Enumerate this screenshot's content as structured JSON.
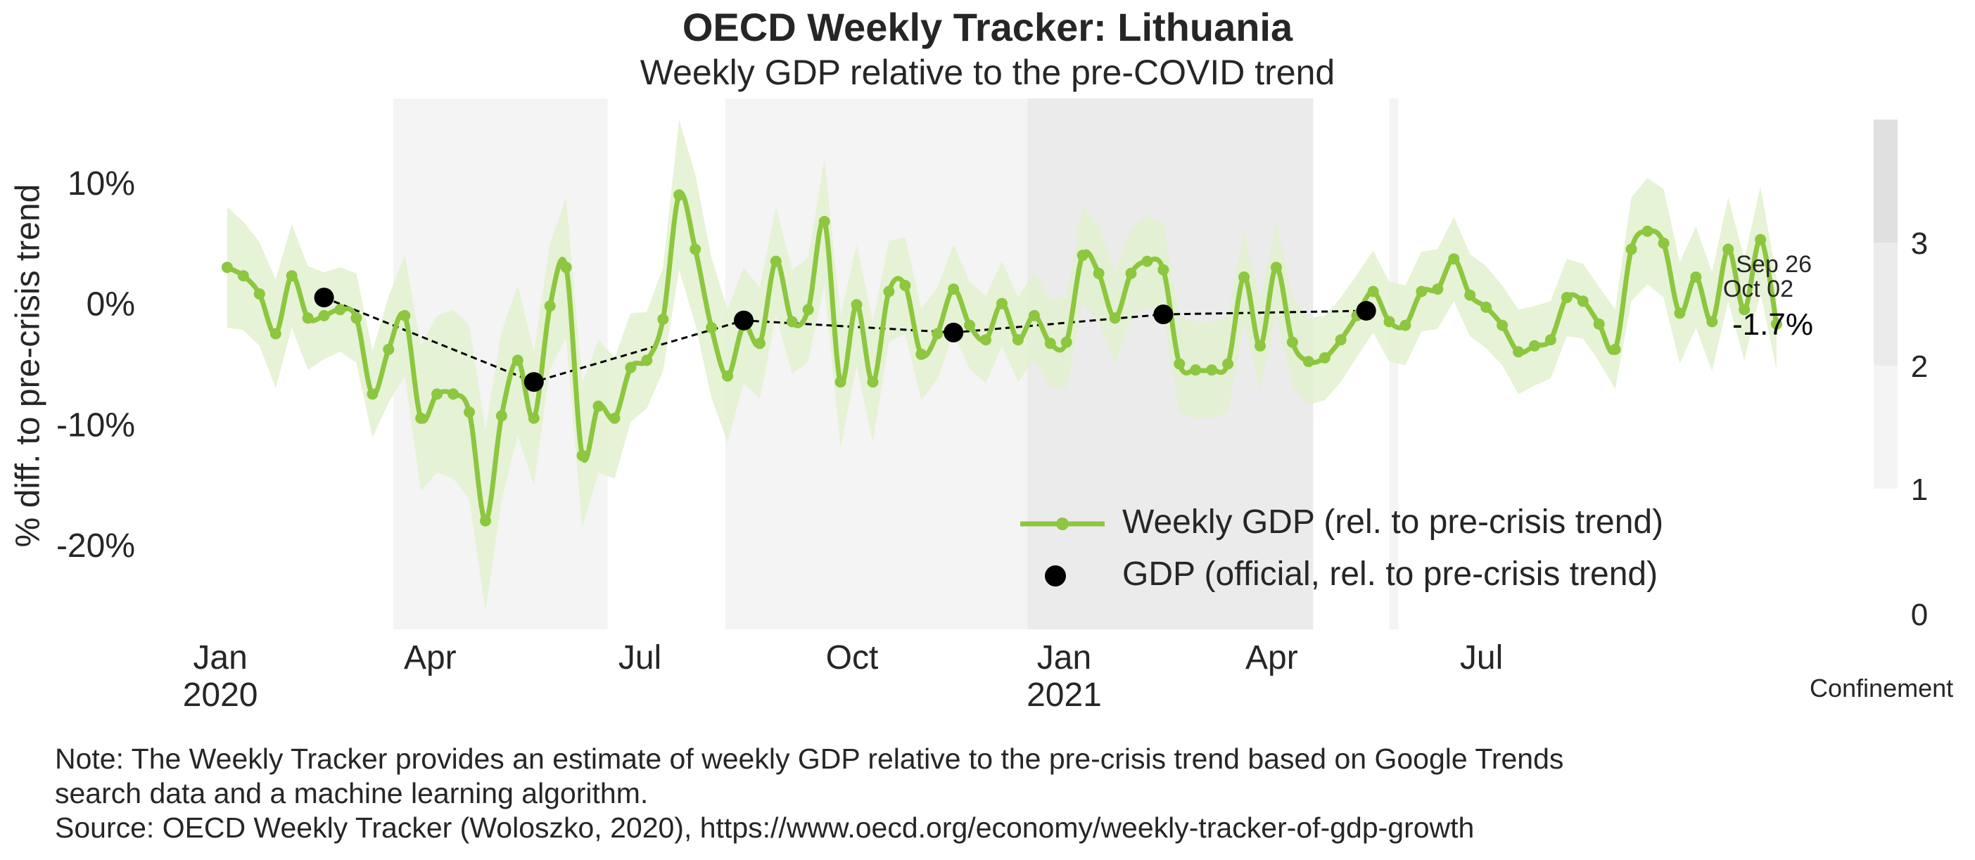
{
  "title": "OECD Weekly Tracker: Lithuania",
  "subtitle": "Weekly GDP relative to the pre-COVID trend",
  "note_lines": [
    "Note: The Weekly Tracker provides an estimate of weekly GDP relative to the pre-crisis trend based on Google Trends",
    "search data and a machine learning algorithm.",
    "Source: OECD Weekly Tracker (Woloszko, 2020), https://www.oecd.org/economy/weekly-tracker-of-gdp-growth"
  ],
  "colors": {
    "weekly": "#8dc63f",
    "weekly_band": "#e2f1cf",
    "official": "#000000",
    "text": "#262626",
    "confinement_levels": [
      "#ffffff",
      "#f4f4f4",
      "#ebebeb",
      "#e0e0e0"
    ]
  },
  "chart_data": {
    "type": "line",
    "ylabel": "% diff. to pre-crisis trend",
    "ylim": [
      -27,
      17
    ],
    "yticks": [
      10,
      0,
      -10,
      -20
    ],
    "ytick_labels": [
      "10%",
      "0%",
      "-10%",
      "-20%"
    ],
    "xlim": [
      "2019-12-28",
      "2021-10-08"
    ],
    "xticks": [
      {
        "date": "2020-01-01",
        "label": "Jan",
        "year": "2020"
      },
      {
        "date": "2020-04-01",
        "label": "Apr",
        "year": ""
      },
      {
        "date": "2020-07-01",
        "label": "Jul",
        "year": ""
      },
      {
        "date": "2020-10-01",
        "label": "Oct",
        "year": ""
      },
      {
        "date": "2021-01-01",
        "label": "Jan",
        "year": "2021"
      },
      {
        "date": "2021-04-01",
        "label": "Apr",
        "year": ""
      },
      {
        "date": "2021-07-01",
        "label": "Jul",
        "year": ""
      }
    ],
    "legend": [
      "Weekly GDP (rel. to pre-crisis trend)",
      "GDP (official, rel. to pre-crisis trend)"
    ],
    "legend_position": "lower right",
    "grid": false,
    "weekly_start": "2020-01-04",
    "weekly_values": [
      3,
      2.3,
      0.8,
      -2.5,
      2.3,
      -1.2,
      -1,
      -0.5,
      -1.2,
      -7.5,
      -3.8,
      -1,
      -9.5,
      -7.5,
      -7.5,
      -9,
      -18,
      -9.3,
      -4.7,
      -9.5,
      -0.2,
      3,
      -12.6,
      -8.5,
      -9.5,
      -5.3,
      -4.7,
      -1.3,
      9,
      4.5,
      -2,
      -6,
      -1.8,
      -3.3,
      3.5,
      -1.5,
      -0.5,
      6.8,
      -6.5,
      -0.1,
      -6.5,
      1,
      1.5,
      -4.2,
      -2.5,
      1.2,
      -1.8,
      -3,
      0,
      -3,
      -1,
      -3.3,
      -3.2,
      4,
      2.5,
      -1.2,
      2.5,
      3.5,
      2.8,
      -5,
      -5.5,
      -5.5,
      -5,
      2.2,
      -3.5,
      3,
      -3.2,
      -4.8,
      -4.5,
      -3,
      -1,
      1,
      -1.5,
      -1.8,
      1,
      1.2,
      3.7,
      0.7,
      -0.3,
      -1.8,
      -4,
      -3.5,
      -3,
      0.5,
      0.2,
      -1.7,
      -3.8,
      4.5,
      6,
      5,
      -0.8,
      2.2,
      -1.5,
      4.5,
      -0.5,
      5.3,
      -1.7
    ],
    "band_width": [
      5,
      4.5,
      4.3,
      4.5,
      4.3,
      4.3,
      3.6,
      3.5,
      3.7,
      3.6,
      4.4,
      5,
      6,
      6.5,
      7,
      7.2,
      7.5,
      7,
      6.2,
      5.5,
      5.2,
      5.8,
      6,
      5.5,
      5,
      4.5,
      4,
      4.3,
      6.2,
      6.2,
      5.8,
      5.5,
      4.8,
      4.6,
      4.5,
      4.3,
      4.3,
      5.2,
      5.5,
      5,
      5,
      4.2,
      4,
      3.8,
      3.8,
      3.7,
      3.6,
      3.6,
      3.5,
      3.5,
      3.6,
      3.7,
      3.8,
      4,
      4,
      3.8,
      3.7,
      3.8,
      3.8,
      4,
      4,
      4,
      4,
      3.8,
      3.7,
      3.8,
      3.7,
      3.6,
      3.5,
      3.5,
      3.4,
      3.4,
      3.3,
      3.3,
      3.3,
      3.3,
      3.5,
      3.4,
      3.4,
      3.3,
      3.5,
      3.3,
      3.2,
      3.2,
      3.1,
      3.1,
      3.3,
      4.3,
      4.4,
      4.5,
      4.2,
      4.2,
      4.1,
      4.3,
      4.2,
      4.4,
      3.8
    ],
    "official": [
      {
        "date": "2020-02-15",
        "value": 0.5
      },
      {
        "date": "2020-05-16",
        "value": -6.5
      },
      {
        "date": "2020-08-15",
        "value": -1.4
      },
      {
        "date": "2020-11-14",
        "value": -2.4
      },
      {
        "date": "2021-02-13",
        "value": -0.9
      },
      {
        "date": "2021-05-12",
        "value": -0.6
      }
    ],
    "end_annotation": {
      "dates": [
        "Sep 26",
        "Oct 02"
      ],
      "value_label": "-1.7%"
    },
    "confinement": {
      "title": "Confinement",
      "ticks": [
        "0",
        "1",
        "2",
        "3"
      ],
      "periods": [
        {
          "start": "2020-03-16",
          "end": "2020-06-17",
          "level": 1
        },
        {
          "start": "2020-08-07",
          "end": "2020-12-16",
          "level": 1
        },
        {
          "start": "2020-12-16",
          "end": "2021-04-19",
          "level": 2
        },
        {
          "start": "2021-05-22",
          "end": "2021-05-26",
          "level": 1
        }
      ]
    }
  }
}
